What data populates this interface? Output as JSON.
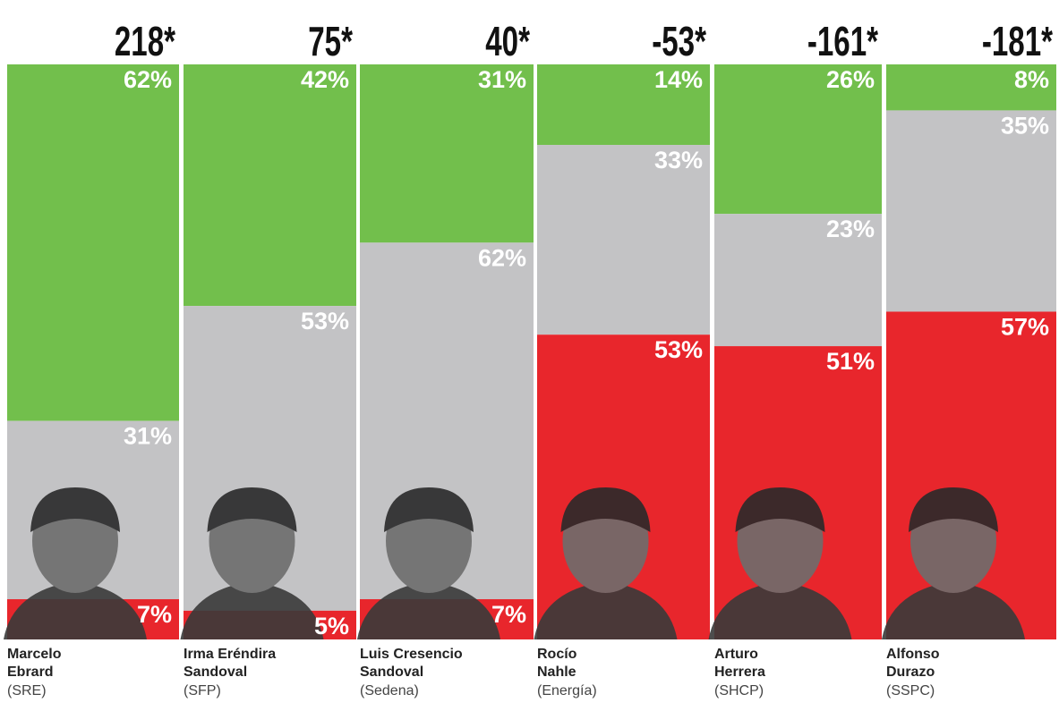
{
  "chart_data": {
    "type": "stacked-bar",
    "categories": [
      "Marcelo\nEbrard",
      "Irma Eréndira\nSandoval",
      "Luis Cresencio\nSandoval",
      "Rocío\nNahle",
      "Arturo\nHerrera",
      "Alfonso\nDurazo"
    ],
    "agencies": [
      "(SRE)",
      "(SFP)",
      "(Sedena)",
      "(Energía)",
      "(SHCP)",
      "(SSPC)"
    ],
    "scores": [
      218,
      75,
      40,
      -53,
      -161,
      -181
    ],
    "score_labels": [
      "218*",
      "75*",
      "40*",
      "-53*",
      "-161*",
      "-181*"
    ],
    "ylim": [
      0,
      100
    ],
    "series": [
      {
        "color": "#72bf4c",
        "values": [
          62,
          42,
          31,
          14,
          26,
          8
        ],
        "value_labels": [
          "62%",
          "42%",
          "31%",
          "14%",
          "26%",
          "8%"
        ]
      },
      {
        "color": "#c3c3c5",
        "values": [
          31,
          53,
          62,
          33,
          23,
          35
        ],
        "value_labels": [
          "31%",
          "53%",
          "62%",
          "33%",
          "23%",
          "35%"
        ]
      },
      {
        "color": "#e8262c",
        "values": [
          7,
          5,
          7,
          53,
          51,
          57
        ],
        "value_labels": [
          "7%",
          "5%",
          "7%",
          "53%",
          "51%",
          "57%"
        ]
      }
    ]
  }
}
